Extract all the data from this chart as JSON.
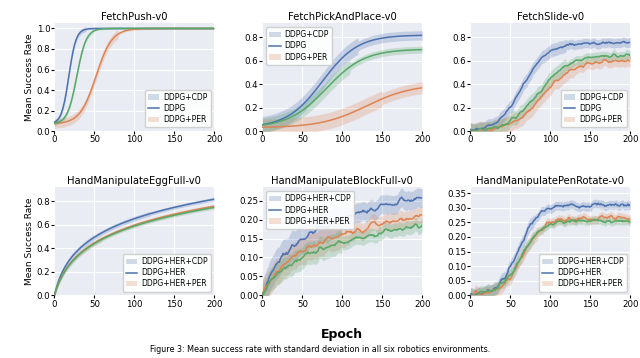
{
  "titles": [
    "FetchPush-v0",
    "FetchPickAndPlace-v0",
    "FetchSlide-v0",
    "HandManipulateEggFull-v0",
    "HandManipulateBlockFull-v0",
    "HandManipulatePenRotate-v0"
  ],
  "xlabel": "Epoch",
  "ylabel": "Mean Success Rate",
  "legend_top": [
    "DDPG+CDP",
    "DDPG",
    "DDPG+PER"
  ],
  "legend_bottom": [
    "DDPG+HER+CDP",
    "DDPG+HER",
    "DDPG+HER+PER"
  ],
  "colors": {
    "cdp": "#4c72b0",
    "base": "#dd8452",
    "per": "#55a868"
  },
  "bg_color": "#eaecf4",
  "figsize": [
    6.4,
    3.58
  ],
  "dpi": 100,
  "caption": "Figure 3: Mean success rate with standard deviation in all six robotics environments."
}
